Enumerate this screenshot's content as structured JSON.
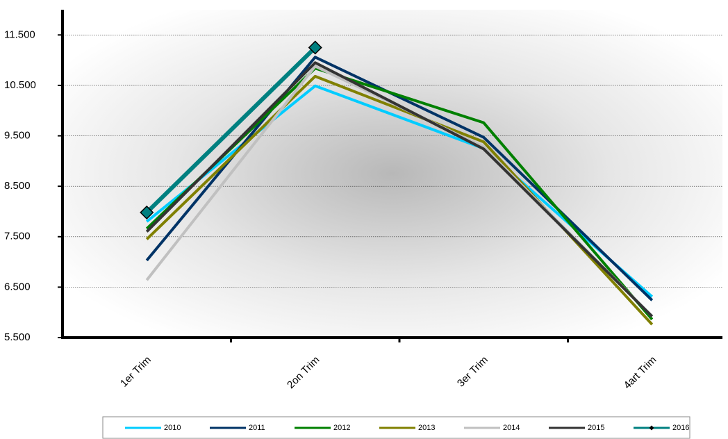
{
  "chart_data": {
    "type": "line",
    "categories": [
      "1er Trim",
      "2on Trim",
      "3er Trim",
      "4art Trim"
    ],
    "series": [
      {
        "name": "2010",
        "color": "#00ccff",
        "values": [
          7800,
          10490,
          9250,
          6310
        ]
      },
      {
        "name": "2011",
        "color": "#003366",
        "values": [
          7030,
          11060,
          9470,
          6240
        ]
      },
      {
        "name": "2012",
        "color": "#008000",
        "values": [
          7660,
          10840,
          9760,
          5860
        ]
      },
      {
        "name": "2013",
        "color": "#808000",
        "values": [
          7450,
          10680,
          9380,
          5760
        ]
      },
      {
        "name": "2014",
        "color": "#c0c0c0",
        "values": [
          6640,
          10880,
          9280,
          5920
        ]
      },
      {
        "name": "2015",
        "color": "#333333",
        "values": [
          7600,
          10950,
          9240,
          5920
        ]
      },
      {
        "name": "2016",
        "color": "#008080",
        "marker": "diamond",
        "values": [
          7980,
          11250,
          null,
          null
        ]
      }
    ],
    "ylim": [
      5500,
      12000
    ],
    "yticks": [
      {
        "value": 5500,
        "label": "5.500"
      },
      {
        "value": 6500,
        "label": "6.500"
      },
      {
        "value": 7500,
        "label": "7.500"
      },
      {
        "value": 8500,
        "label": "8.500"
      },
      {
        "value": 9500,
        "label": "9.500"
      },
      {
        "value": 10500,
        "label": "10.500"
      },
      {
        "value": 11500,
        "label": "11.500"
      }
    ],
    "grid": true,
    "legend": "bottom"
  }
}
